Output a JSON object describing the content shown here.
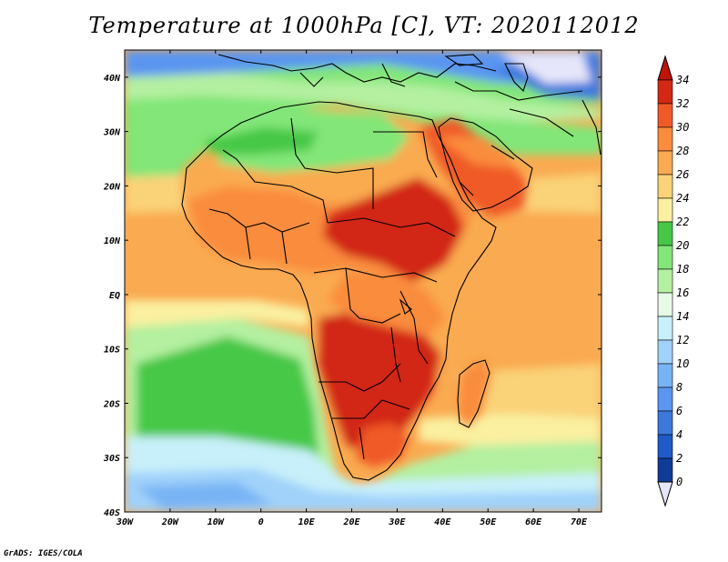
{
  "title": "Temperature at 1000hPa [C], VT: 2020112012",
  "credit": "GrADS: IGES/COLA",
  "map": {
    "projection": "lat-lon",
    "lon_range": [
      -30,
      75
    ],
    "lat_range": [
      -40,
      45
    ],
    "lon_ticks": [
      "30W",
      "20W",
      "10W",
      "0",
      "10E",
      "20E",
      "30E",
      "40E",
      "50E",
      "60E",
      "70E"
    ],
    "lat_ticks": [
      "40N",
      "30N",
      "20N",
      "10N",
      "EQ",
      "10S",
      "20S",
      "30S",
      "40S"
    ]
  },
  "colorbar": {
    "levels": [
      "34",
      "32",
      "30",
      "28",
      "26",
      "24",
      "22",
      "20",
      "18",
      "16",
      "14",
      "12",
      "10",
      "8",
      "6",
      "4",
      "2",
      "0"
    ],
    "colors": [
      "#e6e6fa",
      "#0a1e6e",
      "#0f3c96",
      "#1e5ac8",
      "#3c78dc",
      "#5a96f0",
      "#78b4f5",
      "#a0d2fa",
      "#c8f0fa",
      "#e6fae6",
      "#b4f0a0",
      "#82e678",
      "#46c846",
      "#faf0a0",
      "#fad278",
      "#faaa50",
      "#fa8c3c",
      "#f05a28",
      "#d22814",
      "#be140a"
    ]
  },
  "legend_note": "colors ordered from below-lowest (open triangle) to above-highest (top triangle)"
}
